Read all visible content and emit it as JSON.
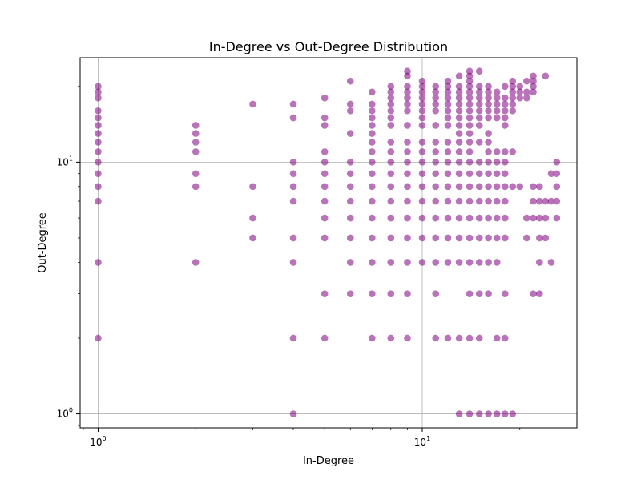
{
  "chart_data": {
    "type": "scatter",
    "title": "In-Degree vs Out-Degree Distribution",
    "xlabel": "In-Degree",
    "ylabel": "Out-Degree",
    "xscale": "log",
    "yscale": "log",
    "xlim": [
      0.88,
      30
    ],
    "ylim": [
      0.88,
      26
    ],
    "grid": "major",
    "legend": "none",
    "x_major_ticks": [
      {
        "value": 1,
        "base": "10",
        "exp": "0"
      },
      {
        "value": 10,
        "base": "10",
        "exp": "1"
      }
    ],
    "y_major_ticks": [
      {
        "value": 1,
        "base": "10",
        "exp": "0"
      },
      {
        "value": 10,
        "base": "10",
        "exp": "1"
      }
    ],
    "point_color": "#800080",
    "point_alpha": 0.55,
    "points": [
      [
        1,
        20
      ],
      [
        1,
        19
      ],
      [
        1,
        18
      ],
      [
        1,
        16
      ],
      [
        1,
        15
      ],
      [
        1,
        14
      ],
      [
        1,
        13
      ],
      [
        1,
        12
      ],
      [
        1,
        11
      ],
      [
        1,
        10
      ],
      [
        1,
        9
      ],
      [
        1,
        8
      ],
      [
        1,
        7
      ],
      [
        1,
        4
      ],
      [
        1,
        2
      ],
      [
        2,
        14
      ],
      [
        2,
        13
      ],
      [
        2,
        12
      ],
      [
        2,
        11
      ],
      [
        2,
        9
      ],
      [
        2,
        8
      ],
      [
        2,
        4
      ],
      [
        3,
        17
      ],
      [
        3,
        8
      ],
      [
        3,
        6
      ],
      [
        3,
        5
      ],
      [
        4,
        17
      ],
      [
        4,
        15
      ],
      [
        4,
        10
      ],
      [
        4,
        9
      ],
      [
        4,
        8
      ],
      [
        4,
        7
      ],
      [
        4,
        5
      ],
      [
        4,
        4
      ],
      [
        4,
        2
      ],
      [
        4,
        1
      ],
      [
        5,
        18
      ],
      [
        5,
        15
      ],
      [
        5,
        14
      ],
      [
        5,
        11
      ],
      [
        5,
        10
      ],
      [
        5,
        9
      ],
      [
        5,
        8
      ],
      [
        5,
        7
      ],
      [
        5,
        6
      ],
      [
        5,
        5
      ],
      [
        5,
        3
      ],
      [
        5,
        2
      ],
      [
        6,
        21
      ],
      [
        6,
        17
      ],
      [
        6,
        16
      ],
      [
        6,
        13
      ],
      [
        6,
        10
      ],
      [
        6,
        9
      ],
      [
        6,
        8
      ],
      [
        6,
        7
      ],
      [
        6,
        6
      ],
      [
        6,
        5
      ],
      [
        6,
        4
      ],
      [
        6,
        3
      ],
      [
        7,
        19
      ],
      [
        7,
        17
      ],
      [
        7,
        16
      ],
      [
        7,
        15
      ],
      [
        7,
        14
      ],
      [
        7,
        13
      ],
      [
        7,
        12
      ],
      [
        7,
        11
      ],
      [
        7,
        10
      ],
      [
        7,
        9
      ],
      [
        7,
        8
      ],
      [
        7,
        7
      ],
      [
        7,
        6
      ],
      [
        7,
        5
      ],
      [
        7,
        4
      ],
      [
        7,
        3
      ],
      [
        7,
        2
      ],
      [
        8,
        20
      ],
      [
        8,
        19
      ],
      [
        8,
        18
      ],
      [
        8,
        17
      ],
      [
        8,
        16
      ],
      [
        8,
        15
      ],
      [
        8,
        14
      ],
      [
        8,
        12
      ],
      [
        8,
        11
      ],
      [
        8,
        10
      ],
      [
        8,
        9
      ],
      [
        8,
        8
      ],
      [
        8,
        7
      ],
      [
        8,
        6
      ],
      [
        8,
        5
      ],
      [
        8,
        4
      ],
      [
        8,
        3
      ],
      [
        8,
        2
      ],
      [
        9,
        23
      ],
      [
        9,
        22
      ],
      [
        9,
        20
      ],
      [
        9,
        19
      ],
      [
        9,
        18
      ],
      [
        9,
        17
      ],
      [
        9,
        16
      ],
      [
        9,
        14
      ],
      [
        9,
        12
      ],
      [
        9,
        11
      ],
      [
        9,
        10
      ],
      [
        9,
        9
      ],
      [
        9,
        8
      ],
      [
        9,
        7
      ],
      [
        9,
        6
      ],
      [
        9,
        5
      ],
      [
        9,
        4
      ],
      [
        9,
        3
      ],
      [
        9,
        2
      ],
      [
        10,
        21
      ],
      [
        10,
        20
      ],
      [
        10,
        19
      ],
      [
        10,
        18
      ],
      [
        10,
        17
      ],
      [
        10,
        16
      ],
      [
        10,
        15
      ],
      [
        10,
        14
      ],
      [
        10,
        12
      ],
      [
        10,
        11
      ],
      [
        10,
        10
      ],
      [
        10,
        9
      ],
      [
        10,
        8
      ],
      [
        10,
        7
      ],
      [
        10,
        6
      ],
      [
        10,
        5
      ],
      [
        10,
        4
      ],
      [
        11,
        20
      ],
      [
        11,
        19
      ],
      [
        11,
        18
      ],
      [
        11,
        17
      ],
      [
        11,
        16
      ],
      [
        11,
        14
      ],
      [
        11,
        12
      ],
      [
        11,
        11
      ],
      [
        11,
        10
      ],
      [
        11,
        9
      ],
      [
        11,
        8
      ],
      [
        11,
        7
      ],
      [
        11,
        6
      ],
      [
        11,
        5
      ],
      [
        11,
        4
      ],
      [
        11,
        3
      ],
      [
        11,
        2
      ],
      [
        12,
        21
      ],
      [
        12,
        20
      ],
      [
        12,
        19
      ],
      [
        12,
        18
      ],
      [
        12,
        17
      ],
      [
        12,
        16
      ],
      [
        12,
        15
      ],
      [
        12,
        14
      ],
      [
        12,
        12
      ],
      [
        12,
        11
      ],
      [
        12,
        10
      ],
      [
        12,
        9
      ],
      [
        12,
        8
      ],
      [
        12,
        7
      ],
      [
        12,
        6
      ],
      [
        12,
        5
      ],
      [
        12,
        4
      ],
      [
        12,
        2
      ],
      [
        13,
        22
      ],
      [
        13,
        20
      ],
      [
        13,
        19
      ],
      [
        13,
        18
      ],
      [
        13,
        17
      ],
      [
        13,
        16
      ],
      [
        13,
        15
      ],
      [
        13,
        14
      ],
      [
        13,
        13
      ],
      [
        13,
        12
      ],
      [
        13,
        11
      ],
      [
        13,
        10
      ],
      [
        13,
        9
      ],
      [
        13,
        8
      ],
      [
        13,
        7
      ],
      [
        13,
        6
      ],
      [
        13,
        5
      ],
      [
        13,
        4
      ],
      [
        13,
        2
      ],
      [
        13,
        1
      ],
      [
        14,
        23
      ],
      [
        14,
        22
      ],
      [
        14,
        21
      ],
      [
        14,
        20
      ],
      [
        14,
        19
      ],
      [
        14,
        18
      ],
      [
        14,
        17
      ],
      [
        14,
        16
      ],
      [
        14,
        15
      ],
      [
        14,
        14
      ],
      [
        14,
        13
      ],
      [
        14,
        12
      ],
      [
        14,
        11
      ],
      [
        14,
        10
      ],
      [
        14,
        9
      ],
      [
        14,
        8
      ],
      [
        14,
        7
      ],
      [
        14,
        6
      ],
      [
        14,
        5
      ],
      [
        14,
        4
      ],
      [
        14,
        3
      ],
      [
        14,
        2
      ],
      [
        14,
        1
      ],
      [
        15,
        23
      ],
      [
        15,
        20
      ],
      [
        15,
        19
      ],
      [
        15,
        18
      ],
      [
        15,
        17
      ],
      [
        15,
        16
      ],
      [
        15,
        15
      ],
      [
        15,
        14
      ],
      [
        15,
        12
      ],
      [
        15,
        10
      ],
      [
        15,
        9
      ],
      [
        15,
        8
      ],
      [
        15,
        7
      ],
      [
        15,
        6
      ],
      [
        15,
        5
      ],
      [
        15,
        4
      ],
      [
        15,
        3
      ],
      [
        15,
        2
      ],
      [
        15,
        1
      ],
      [
        16,
        20
      ],
      [
        16,
        19
      ],
      [
        16,
        18
      ],
      [
        16,
        17
      ],
      [
        16,
        16
      ],
      [
        16,
        15
      ],
      [
        16,
        13
      ],
      [
        16,
        12
      ],
      [
        16,
        11
      ],
      [
        16,
        10
      ],
      [
        16,
        9
      ],
      [
        16,
        8
      ],
      [
        16,
        7
      ],
      [
        16,
        6
      ],
      [
        16,
        5
      ],
      [
        16,
        4
      ],
      [
        16,
        3
      ],
      [
        16,
        1
      ],
      [
        17,
        19
      ],
      [
        17,
        18
      ],
      [
        17,
        17
      ],
      [
        17,
        16
      ],
      [
        17,
        15
      ],
      [
        17,
        11
      ],
      [
        17,
        10
      ],
      [
        17,
        9
      ],
      [
        17,
        8
      ],
      [
        17,
        7
      ],
      [
        17,
        6
      ],
      [
        17,
        5
      ],
      [
        17,
        4
      ],
      [
        17,
        2
      ],
      [
        17,
        1
      ],
      [
        18,
        20
      ],
      [
        18,
        18
      ],
      [
        18,
        17
      ],
      [
        18,
        16
      ],
      [
        18,
        15
      ],
      [
        18,
        14
      ],
      [
        18,
        11
      ],
      [
        18,
        10
      ],
      [
        18,
        9
      ],
      [
        18,
        8
      ],
      [
        18,
        7
      ],
      [
        18,
        6
      ],
      [
        18,
        5
      ],
      [
        18,
        3
      ],
      [
        18,
        2
      ],
      [
        18,
        1
      ],
      [
        19,
        21
      ],
      [
        19,
        20
      ],
      [
        19,
        19
      ],
      [
        19,
        18
      ],
      [
        19,
        17
      ],
      [
        19,
        16
      ],
      [
        19,
        11
      ],
      [
        19,
        8
      ],
      [
        19,
        1
      ],
      [
        20,
        20
      ],
      [
        20,
        19
      ],
      [
        20,
        18
      ],
      [
        20,
        8
      ],
      [
        21,
        21
      ],
      [
        21,
        19
      ],
      [
        21,
        18
      ],
      [
        21,
        6
      ],
      [
        21,
        5
      ],
      [
        22,
        22
      ],
      [
        22,
        21
      ],
      [
        22,
        20
      ],
      [
        22,
        19
      ],
      [
        22,
        8
      ],
      [
        22,
        7
      ],
      [
        22,
        6
      ],
      [
        22,
        3
      ],
      [
        23,
        8
      ],
      [
        23,
        7
      ],
      [
        23,
        6
      ],
      [
        23,
        5
      ],
      [
        23,
        4
      ],
      [
        23,
        3
      ],
      [
        24,
        22
      ],
      [
        24,
        7
      ],
      [
        24,
        6
      ],
      [
        24,
        5
      ],
      [
        25,
        9
      ],
      [
        25,
        7
      ],
      [
        25,
        4
      ],
      [
        26,
        10
      ],
      [
        26,
        9
      ],
      [
        26,
        8
      ],
      [
        26,
        7
      ],
      [
        26,
        6
      ]
    ]
  }
}
